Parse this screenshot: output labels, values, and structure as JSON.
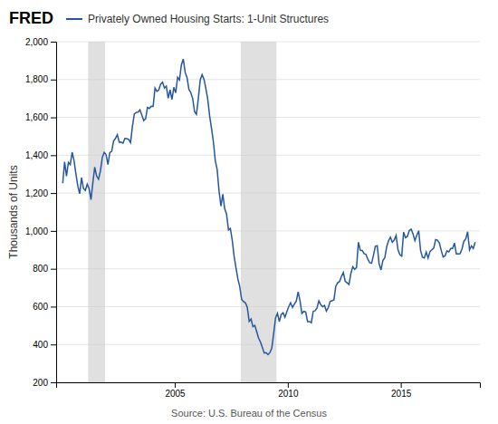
{
  "chart_data": {
    "type": "line",
    "title": "Privately Owned Housing Starts: 1-Unit Structures",
    "ylabel": "Thousands of Units",
    "annotations": [
      "FRED",
      "Source: U.S. Bureau of the Census"
    ],
    "color": "#2457a0",
    "recessions": {
      "color": "#cccccc",
      "spans": [
        [
          2001.167,
          2001.917
        ],
        [
          2007.917,
          2009.5
        ]
      ]
    },
    "xlim": [
      1999.75,
      2018.5
    ],
    "xticks": [
      2005,
      2010,
      2015
    ],
    "ylim": [
      200,
      2000
    ],
    "yticks": [
      200,
      400,
      600,
      800,
      {
        "value": 1000,
        "label": "1,000"
      },
      {
        "value": 1200,
        "label": "1,200"
      },
      {
        "value": 1400,
        "label": "1,400"
      },
      {
        "value": 1600,
        "label": "1,600"
      },
      {
        "value": 1800,
        "label": "1,800"
      },
      {
        "value": 2000,
        "label": "2,000"
      }
    ],
    "grid": true,
    "x": [
      2000.042,
      2000.125,
      2000.208,
      2000.292,
      2000.375,
      2000.458,
      2000.542,
      2000.625,
      2000.708,
      2000.792,
      2000.875,
      2000.958,
      2001.042,
      2001.125,
      2001.208,
      2001.292,
      2001.375,
      2001.458,
      2001.542,
      2001.625,
      2001.708,
      2001.792,
      2001.875,
      2001.958,
      2002.042,
      2002.125,
      2002.208,
      2002.292,
      2002.375,
      2002.458,
      2002.542,
      2002.625,
      2002.708,
      2002.792,
      2002.875,
      2002.958,
      2003.042,
      2003.125,
      2003.208,
      2003.292,
      2003.375,
      2003.458,
      2003.542,
      2003.625,
      2003.708,
      2003.792,
      2003.875,
      2003.958,
      2004.042,
      2004.125,
      2004.208,
      2004.292,
      2004.375,
      2004.458,
      2004.542,
      2004.625,
      2004.708,
      2004.792,
      2004.875,
      2004.958,
      2005.042,
      2005.125,
      2005.208,
      2005.292,
      2005.375,
      2005.458,
      2005.542,
      2005.625,
      2005.708,
      2005.792,
      2005.875,
      2005.958,
      2006.042,
      2006.125,
      2006.208,
      2006.292,
      2006.375,
      2006.458,
      2006.542,
      2006.625,
      2006.708,
      2006.792,
      2006.875,
      2006.958,
      2007.042,
      2007.125,
      2007.208,
      2007.292,
      2007.375,
      2007.458,
      2007.542,
      2007.625,
      2007.708,
      2007.792,
      2007.875,
      2007.958,
      2008.042,
      2008.125,
      2008.208,
      2008.292,
      2008.375,
      2008.458,
      2008.542,
      2008.625,
      2008.708,
      2008.792,
      2008.875,
      2008.958,
      2009.042,
      2009.125,
      2009.208,
      2009.292,
      2009.375,
      2009.458,
      2009.542,
      2009.625,
      2009.708,
      2009.792,
      2009.875,
      2009.958,
      2010.042,
      2010.125,
      2010.208,
      2010.292,
      2010.375,
      2010.458,
      2010.542,
      2010.625,
      2010.708,
      2010.792,
      2010.875,
      2010.958,
      2011.042,
      2011.125,
      2011.208,
      2011.292,
      2011.375,
      2011.458,
      2011.542,
      2011.625,
      2011.708,
      2011.792,
      2011.875,
      2011.958,
      2012.042,
      2012.125,
      2012.208,
      2012.292,
      2012.375,
      2012.458,
      2012.542,
      2012.625,
      2012.708,
      2012.792,
      2012.875,
      2012.958,
      2013.042,
      2013.125,
      2013.208,
      2013.292,
      2013.375,
      2013.458,
      2013.542,
      2013.625,
      2013.708,
      2013.792,
      2013.875,
      2013.958,
      2014.042,
      2014.125,
      2014.208,
      2014.292,
      2014.375,
      2014.458,
      2014.542,
      2014.625,
      2014.708,
      2014.792,
      2014.875,
      2014.958,
      2015.042,
      2015.125,
      2015.208,
      2015.292,
      2015.375,
      2015.458,
      2015.542,
      2015.625,
      2015.708,
      2015.792,
      2015.875,
      2015.958,
      2016.042,
      2016.125,
      2016.208,
      2016.292,
      2016.375,
      2016.458,
      2016.542,
      2016.625,
      2016.708,
      2016.792,
      2016.875,
      2016.958,
      2017.042,
      2017.125,
      2017.208,
      2017.292,
      2017.375,
      2017.458,
      2017.542,
      2017.625,
      2017.708,
      2017.792,
      2017.875,
      2017.958,
      2018.042,
      2018.125,
      2018.208,
      2018.292
    ],
    "values": [
      1252,
      1365,
      1290,
      1362,
      1350,
      1416,
      1371,
      1302,
      1238,
      1196,
      1281,
      1225,
      1214,
      1247,
      1223,
      1165,
      1255,
      1337,
      1290,
      1273,
      1316,
      1388,
      1415,
      1404,
      1351,
      1414,
      1420,
      1475,
      1489,
      1509,
      1469,
      1470,
      1463,
      1489,
      1488,
      1484,
      1467,
      1552,
      1618,
      1626,
      1628,
      1640,
      1612,
      1583,
      1593,
      1652,
      1647,
      1659,
      1658,
      1755,
      1737,
      1745,
      1776,
      1786,
      1755,
      1765,
      1701,
      1745,
      1694,
      1759,
      1730,
      1812,
      1798,
      1878,
      1908,
      1839,
      1810,
      1748,
      1731,
      1699,
      1630,
      1616,
      1700,
      1798,
      1826,
      1802,
      1753,
      1697,
      1607,
      1542,
      1471,
      1371,
      1324,
      1211,
      1131,
      1194,
      1118,
      1088,
      1005,
      1013,
      951,
      866,
      805,
      746,
      706,
      638,
      626,
      620,
      596,
      522,
      534,
      494,
      501,
      467,
      433,
      413,
      384,
      355,
      357,
      346,
      357,
      381,
      457,
      540,
      565,
      521,
      558,
      567,
      544,
      573,
      600,
      621,
      596,
      614,
      629,
      678,
      630,
      564,
      575,
      572,
      521,
      521,
      515,
      575,
      579,
      593,
      630,
      610,
      600,
      606,
      576,
      595,
      628,
      631,
      636,
      708,
      726,
      733,
      760,
      780,
      733,
      726,
      717,
      776,
      811,
      797,
      807,
      940,
      898,
      897,
      880,
      876,
      850,
      832,
      829,
      872,
      919,
      922,
      826,
      794,
      844,
      858,
      916,
      948,
      967,
      940,
      951,
      976,
      901,
      875,
      867,
      994,
      964,
      971,
      1002,
      1009,
      984,
      949,
      977,
      1001,
      897,
      861,
      857,
      888,
      856,
      891,
      900,
      909,
      954,
      951,
      936,
      896,
      862,
      868,
      895,
      889,
      907,
      907,
      936,
      879,
      879,
      880,
      905,
      946,
      958,
      996,
      900,
      921,
      907,
      941
    ]
  }
}
